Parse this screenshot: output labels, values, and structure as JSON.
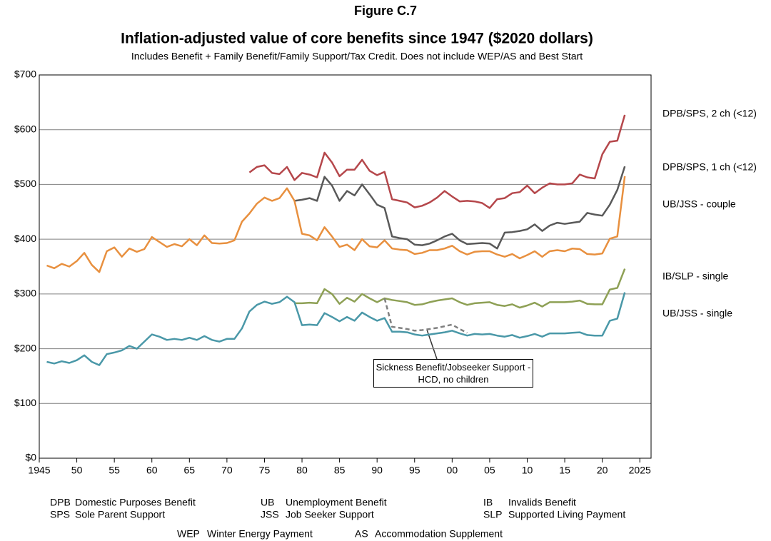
{
  "chart_data": {
    "type": "line",
    "title": "Figure C.7",
    "subtitle": "Inflation-adjusted  value of core benefits since 1947 ($2020 dollars)",
    "note": "Includes Benefit + Family Benefit/Family Support/Tax Credit.  Does not include WEP/AS and Best Start",
    "x": [
      1946,
      1947,
      1948,
      1949,
      1950,
      1951,
      1952,
      1953,
      1954,
      1955,
      1956,
      1957,
      1958,
      1959,
      1960,
      1961,
      1962,
      1963,
      1964,
      1965,
      1966,
      1967,
      1968,
      1969,
      1970,
      1971,
      1972,
      1973,
      1974,
      1975,
      1976,
      1977,
      1978,
      1979,
      1980,
      1981,
      1982,
      1983,
      1984,
      1985,
      1986,
      1987,
      1988,
      1989,
      1990,
      1991,
      1992,
      1993,
      1994,
      1995,
      1996,
      1997,
      1998,
      1999,
      2000,
      2001,
      2002,
      2003,
      2004,
      2005,
      2006,
      2007,
      2008,
      2009,
      2010,
      2011,
      2012,
      2013,
      2014,
      2015,
      2016,
      2017,
      2018,
      2019,
      2020,
      2021,
      2022,
      2023
    ],
    "xlim": [
      1945,
      2026.5
    ],
    "xticks": [
      1945,
      {
        "value": 1950,
        "label": "50"
      },
      {
        "value": 1955,
        "label": "55"
      },
      {
        "value": 1960,
        "label": "60"
      },
      {
        "value": 1965,
        "label": "65"
      },
      {
        "value": 1970,
        "label": "70"
      },
      {
        "value": 1975,
        "label": "75"
      },
      {
        "value": 1980,
        "label": "80"
      },
      {
        "value": 1985,
        "label": "85"
      },
      {
        "value": 1990,
        "label": "90"
      },
      {
        "value": 1995,
        "label": "95"
      },
      {
        "value": 2000,
        "label": "00"
      },
      {
        "value": 2005,
        "label": "05"
      },
      {
        "value": 2010,
        "label": "10"
      },
      {
        "value": 2015,
        "label": "15"
      },
      {
        "value": 2020,
        "label": "20"
      },
      2025
    ],
    "ylim": [
      0,
      700
    ],
    "yticks": [
      {
        "value": 0,
        "label": "$0"
      },
      {
        "value": 100,
        "label": "$100"
      },
      {
        "value": 200,
        "label": "$200"
      },
      {
        "value": 300,
        "label": "$300"
      },
      {
        "value": 400,
        "label": "$400"
      },
      {
        "value": 500,
        "label": "$500"
      },
      {
        "value": 600,
        "label": "$600"
      },
      {
        "value": 700,
        "label": "$700"
      }
    ],
    "grid": true,
    "series": [
      {
        "name": "DPB/SPS, 2 ch (<12)",
        "color": "#b5474b",
        "values": [
          null,
          null,
          null,
          null,
          null,
          null,
          null,
          null,
          null,
          null,
          null,
          null,
          null,
          null,
          null,
          null,
          null,
          null,
          null,
          null,
          null,
          null,
          null,
          null,
          null,
          null,
          null,
          522,
          532,
          535,
          521,
          519,
          532,
          508,
          521,
          518,
          513,
          558,
          540,
          515,
          527,
          527,
          545,
          525,
          517,
          523,
          473,
          470,
          467,
          458,
          461,
          467,
          476,
          488,
          478,
          469,
          470,
          469,
          466,
          457,
          473,
          475,
          484,
          486,
          498,
          484,
          494,
          502,
          500,
          500,
          502,
          518,
          513,
          511,
          555,
          578,
          580,
          627
        ]
      },
      {
        "name": "DPB/SPS, 1 ch (<12)",
        "color": "#595959",
        "values": [
          null,
          null,
          null,
          null,
          null,
          null,
          null,
          null,
          null,
          null,
          null,
          null,
          null,
          null,
          null,
          null,
          null,
          null,
          null,
          null,
          null,
          null,
          null,
          null,
          null,
          null,
          null,
          null,
          null,
          null,
          null,
          null,
          null,
          470,
          472,
          475,
          470,
          514,
          498,
          470,
          488,
          480,
          500,
          482,
          463,
          457,
          405,
          402,
          400,
          390,
          389,
          392,
          398,
          405,
          410,
          398,
          391,
          392,
          393,
          392,
          383,
          412,
          413,
          415,
          418,
          427,
          415,
          425,
          430,
          428,
          430,
          432,
          448,
          445,
          443,
          463,
          490,
          533
        ]
      },
      {
        "name": "UB/JSS - couple",
        "color": "#e8903f",
        "values": [
          352,
          347,
          355,
          350,
          360,
          375,
          353,
          340,
          378,
          385,
          368,
          383,
          377,
          382,
          404,
          395,
          386,
          391,
          387,
          400,
          389,
          407,
          393,
          392,
          393,
          398,
          432,
          447,
          465,
          476,
          470,
          475,
          493,
          470,
          410,
          407,
          398,
          422,
          405,
          386,
          390,
          380,
          400,
          387,
          385,
          398,
          383,
          381,
          380,
          373,
          375,
          380,
          380,
          383,
          388,
          378,
          372,
          377,
          378,
          378,
          372,
          368,
          373,
          365,
          371,
          378,
          368,
          378,
          380,
          378,
          383,
          382,
          373,
          372,
          374,
          401,
          405,
          515
        ]
      },
      {
        "name": "IB/SLP - single",
        "color": "#8ea055",
        "values": [
          null,
          null,
          null,
          null,
          null,
          null,
          null,
          null,
          null,
          null,
          null,
          null,
          null,
          null,
          null,
          null,
          null,
          null,
          null,
          null,
          null,
          null,
          null,
          null,
          null,
          null,
          null,
          null,
          null,
          null,
          null,
          null,
          null,
          283,
          283,
          284,
          283,
          309,
          300,
          282,
          293,
          286,
          300,
          292,
          285,
          292,
          289,
          287,
          285,
          280,
          281,
          285,
          288,
          290,
          292,
          285,
          280,
          283,
          284,
          285,
          280,
          278,
          281,
          275,
          279,
          284,
          277,
          285,
          285,
          285,
          286,
          288,
          282,
          281,
          281,
          308,
          311,
          346
        ]
      },
      {
        "name": "UB/JSS - single",
        "color": "#4a98a8",
        "values": [
          176,
          173,
          177,
          174,
          179,
          188,
          176,
          170,
          190,
          193,
          197,
          205,
          200,
          213,
          226,
          222,
          216,
          218,
          216,
          220,
          216,
          223,
          216,
          213,
          218,
          218,
          237,
          268,
          280,
          286,
          282,
          285,
          295,
          285,
          243,
          244,
          243,
          265,
          258,
          250,
          258,
          251,
          266,
          258,
          251,
          256,
          231,
          231,
          230,
          226,
          224,
          226,
          228,
          230,
          233,
          228,
          224,
          227,
          226,
          227,
          224,
          222,
          225,
          220,
          223,
          227,
          222,
          228,
          228,
          228,
          229,
          230,
          225,
          224,
          224,
          251,
          255,
          303
        ]
      },
      {
        "name": "Sickness Benefit/Jobseeker Support - HCD, no children",
        "color": "#808080",
        "dashed": true,
        "values": [
          null,
          null,
          null,
          null,
          null,
          null,
          null,
          null,
          null,
          null,
          null,
          null,
          null,
          null,
          null,
          null,
          null,
          null,
          null,
          null,
          null,
          null,
          null,
          null,
          null,
          null,
          null,
          null,
          null,
          null,
          null,
          null,
          null,
          null,
          null,
          null,
          null,
          null,
          null,
          null,
          null,
          null,
          null,
          null,
          null,
          292,
          240,
          238,
          236,
          233,
          234,
          236,
          238,
          241,
          244,
          236,
          229,
          null,
          null,
          null,
          null,
          null,
          null,
          null,
          null,
          null,
          null,
          null,
          null,
          null,
          null,
          null,
          null,
          null,
          null,
          null,
          null,
          null
        ]
      }
    ],
    "abbreviations": [
      {
        "abbr": "DPB",
        "text": "Domestic Purposes Benefit"
      },
      {
        "abbr": "SPS",
        "text": "Sole Parent Support"
      },
      {
        "abbr": "UB",
        "text": "Unemployment  Benefit"
      },
      {
        "abbr": "JSS",
        "text": "Job Seeker Support"
      },
      {
        "abbr": "IB",
        "text": "Invalids  Benefit"
      },
      {
        "abbr": "SLP",
        "text": "Supported Living Payment"
      },
      {
        "abbr": "WEP",
        "text": "Winter Energy Payment"
      },
      {
        "abbr": "AS",
        "text": "Accommodation Supplement"
      }
    ]
  }
}
